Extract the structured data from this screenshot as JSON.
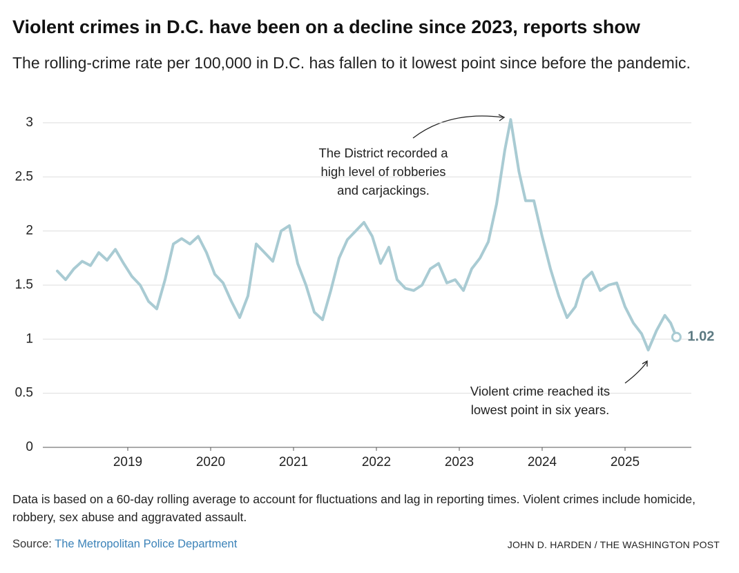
{
  "chart_data": {
    "type": "line",
    "title": "Violent crimes in D.C. have been on a decline since 2023, reports show",
    "subtitle": "The rolling-crime rate per 100,000 in D.C. has fallen to it lowest point since before the pandemic.",
    "x": [
      2018.15,
      2018.25,
      2018.35,
      2018.45,
      2018.55,
      2018.65,
      2018.75,
      2018.85,
      2018.95,
      2019.05,
      2019.15,
      2019.25,
      2019.35,
      2019.45,
      2019.55,
      2019.65,
      2019.75,
      2019.85,
      2019.95,
      2020.05,
      2020.15,
      2020.25,
      2020.35,
      2020.45,
      2020.55,
      2020.65,
      2020.75,
      2020.85,
      2020.95,
      2021.05,
      2021.15,
      2021.25,
      2021.35,
      2021.45,
      2021.55,
      2021.65,
      2021.75,
      2021.85,
      2021.95,
      2022.05,
      2022.15,
      2022.25,
      2022.35,
      2022.45,
      2022.55,
      2022.65,
      2022.75,
      2022.85,
      2022.95,
      2023.05,
      2023.15,
      2023.25,
      2023.35,
      2023.45,
      2023.55,
      2023.62,
      2023.72,
      2023.8,
      2023.9,
      2024.0,
      2024.1,
      2024.2,
      2024.3,
      2024.4,
      2024.5,
      2024.6,
      2024.7,
      2024.8,
      2024.9,
      2025.0,
      2025.1,
      2025.2,
      2025.28,
      2025.38,
      2025.48,
      2025.55,
      2025.62
    ],
    "values": [
      1.63,
      1.55,
      1.65,
      1.72,
      1.68,
      1.8,
      1.73,
      1.83,
      1.7,
      1.58,
      1.5,
      1.35,
      1.28,
      1.55,
      1.88,
      1.93,
      1.88,
      1.95,
      1.8,
      1.6,
      1.52,
      1.35,
      1.2,
      1.4,
      1.88,
      1.8,
      1.72,
      2.0,
      2.05,
      1.7,
      1.5,
      1.25,
      1.18,
      1.45,
      1.75,
      1.92,
      2.0,
      2.08,
      1.95,
      1.7,
      1.85,
      1.55,
      1.47,
      1.45,
      1.5,
      1.65,
      1.7,
      1.52,
      1.55,
      1.45,
      1.65,
      1.75,
      1.9,
      2.25,
      2.75,
      3.03,
      2.55,
      2.28,
      2.28,
      1.95,
      1.65,
      1.4,
      1.2,
      1.3,
      1.55,
      1.62,
      1.45,
      1.5,
      1.52,
      1.3,
      1.15,
      1.05,
      0.9,
      1.08,
      1.22,
      1.15,
      1.02
    ],
    "color": "#a9cbd3",
    "xlim": [
      2018,
      2025.8
    ],
    "xticks": [
      2019,
      2020,
      2021,
      2022,
      2023,
      2024,
      2025
    ],
    "ylim": [
      0,
      3.1
    ],
    "yticks": [
      0,
      0.5,
      1,
      1.5,
      2,
      2.5,
      3
    ],
    "grid": true,
    "annotations": [
      {
        "lines": [
          "The District recorded a",
          "high level of robberies",
          "and carjackings."
        ]
      },
      {
        "lines": [
          "Violent crime reached its",
          "lowest point in six years."
        ]
      }
    ],
    "note": "Data is based on a 60-day rolling average to account for fluctuations and lag in reporting times. Violent crimes include homicide, robbery, sex abuse and aggravated assault.",
    "source_label": "Source:",
    "source": "The Metropolitan Police Department",
    "credit": "JOHN D. HARDEN / THE WASHINGTON POST"
  }
}
